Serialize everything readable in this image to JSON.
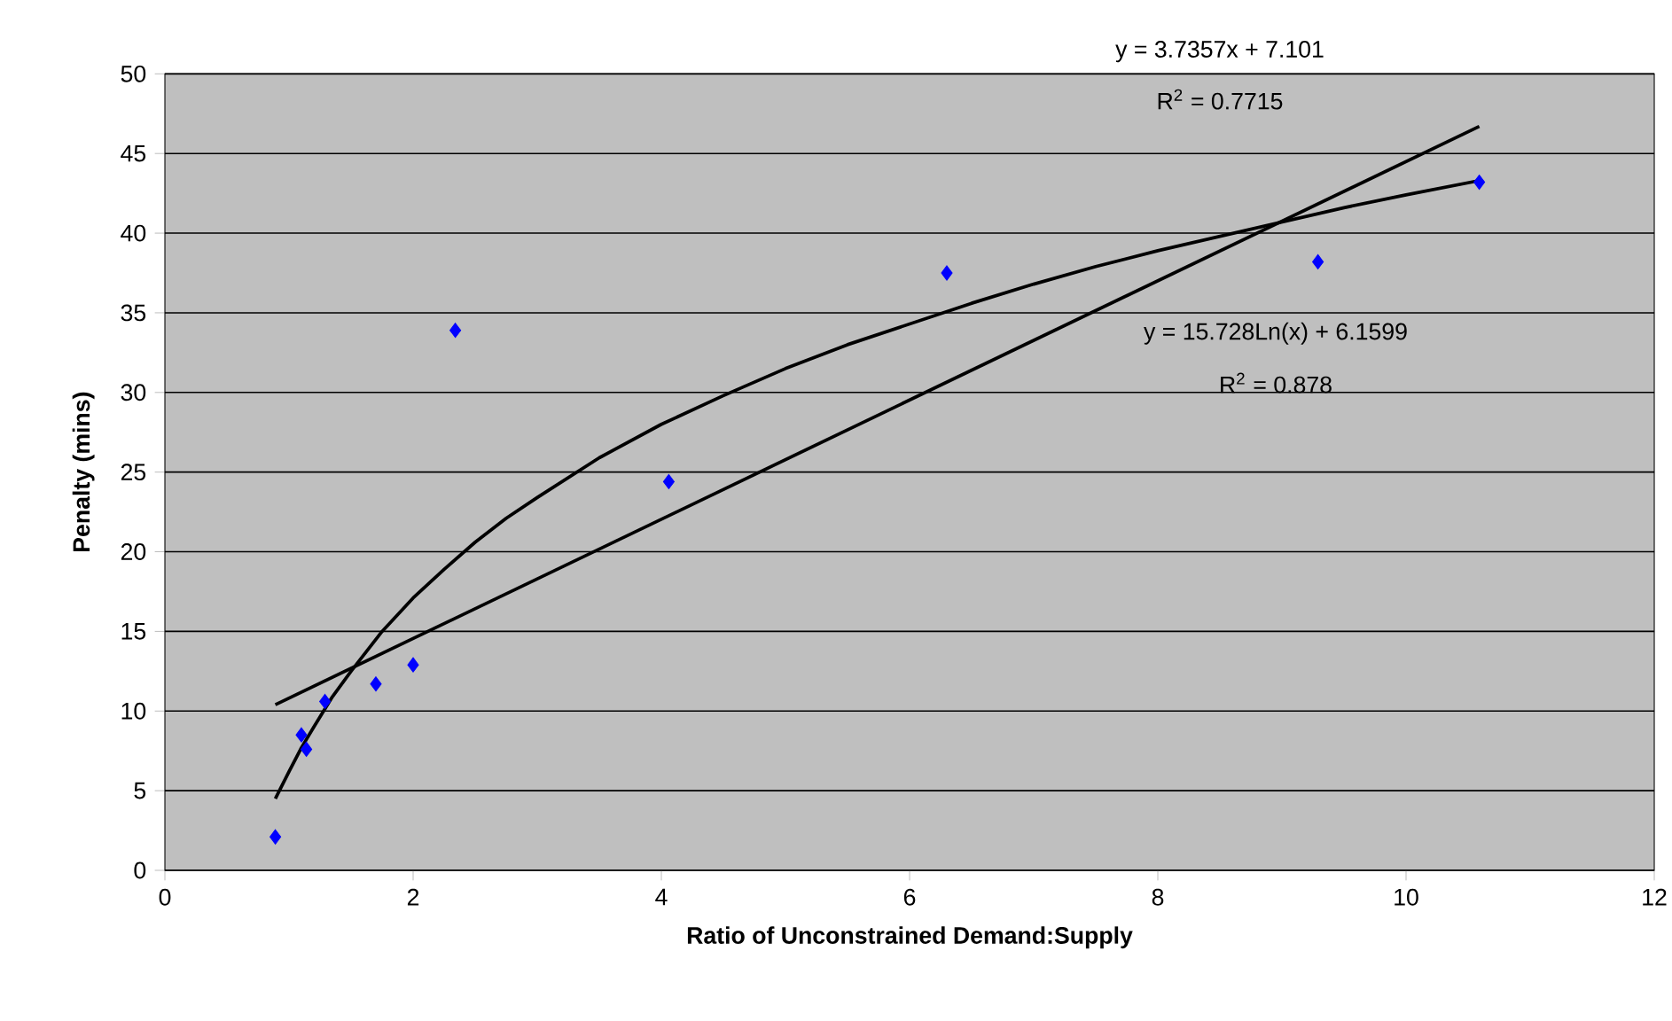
{
  "chart_data": {
    "type": "scatter",
    "xlabel": "Ratio of Unconstrained Demand:Supply",
    "ylabel": "Penalty (mins)",
    "xlim": [
      0,
      12
    ],
    "xticks": [
      0,
      2,
      4,
      6,
      8,
      10,
      12
    ],
    "ylim": [
      0,
      50
    ],
    "yticks": [
      0,
      5,
      10,
      15,
      20,
      25,
      30,
      35,
      40,
      45,
      50
    ],
    "grid": "y",
    "marker": "diamond",
    "annotations": [
      "y = 3.7357x + 7.101",
      "R$^{2}$ = 0.7715",
      "y = 15.728Ln(x) + 6.1599",
      "R$^{2}$ = 0.878"
    ],
    "series": [
      {
        "color": "#0000ff",
        "x": [
          0.89,
          1.1,
          1.14,
          1.29,
          1.7,
          2.0,
          2.34,
          4.06,
          6.3,
          9.29,
          10.59
        ],
        "values": [
          2.1,
          8.5,
          7.6,
          10.6,
          11.7,
          12.9,
          33.9,
          24.4,
          37.5,
          38.2,
          43.2
        ]
      },
      {
        "type": "line",
        "color": "#000000",
        "marker": "none",
        "x": [
          0.89,
          10.59
        ],
        "values": [
          10.4,
          46.7
        ]
      },
      {
        "type": "line",
        "color": "#000000",
        "marker": "none",
        "x": [
          0.89,
          1.0,
          1.1,
          1.2,
          1.35,
          1.5,
          1.75,
          2,
          2.25,
          2.5,
          2.75,
          3,
          3.5,
          4,
          4.5,
          5,
          5.5,
          6,
          6.5,
          7,
          7.5,
          8,
          8.5,
          9,
          9.5,
          10,
          10.59
        ],
        "values": [
          4.5,
          6.2,
          7.7,
          9.0,
          10.9,
          12.5,
          15.0,
          17.1,
          18.9,
          20.6,
          22.1,
          23.4,
          25.9,
          28.0,
          29.8,
          31.5,
          33.0,
          34.3,
          35.6,
          36.8,
          37.9,
          38.9,
          39.8,
          40.7,
          41.6,
          42.4,
          43.3
        ]
      }
    ]
  }
}
